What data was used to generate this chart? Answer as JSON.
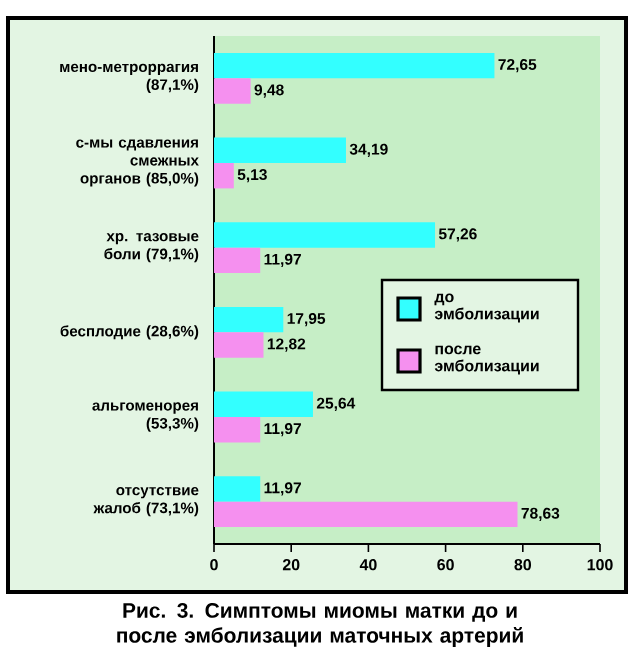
{
  "chart_data": {
    "type": "bar",
    "orientation": "horizontal",
    "title": "Рис. 3. Симптомы миомы матки до и после эмболизации маточных артерий",
    "categories": [
      "мено-метроррагия (87,1%)",
      "с-мы сдавления смежных органов (85,0%)",
      "хр. тазовые боли (79,1%)",
      "бесплодие (28,6%)",
      "альгоменорея (53,3%)",
      "отсутствие жалоб (73,1%)"
    ],
    "series": [
      {
        "name": "до эмболизации",
        "color": "#33ffff",
        "values": [
          72.65,
          34.19,
          57.26,
          17.95,
          25.64,
          11.97
        ],
        "value_labels": [
          "72,65",
          "34,19",
          "57,26",
          "17,95",
          "25,64",
          "11,97"
        ]
      },
      {
        "name": "после эмболизации",
        "color": "#f590ef",
        "values": [
          9.48,
          5.13,
          11.97,
          12.82,
          11.97,
          78.63
        ],
        "value_labels": [
          "9,48",
          "5,13",
          "11,97",
          "12,82",
          "11,97",
          "78,63"
        ]
      }
    ],
    "xlim": [
      0,
      100
    ],
    "xticks": [
      0,
      20,
      40,
      60,
      80,
      100
    ],
    "grid": false,
    "legend": "right"
  }
}
